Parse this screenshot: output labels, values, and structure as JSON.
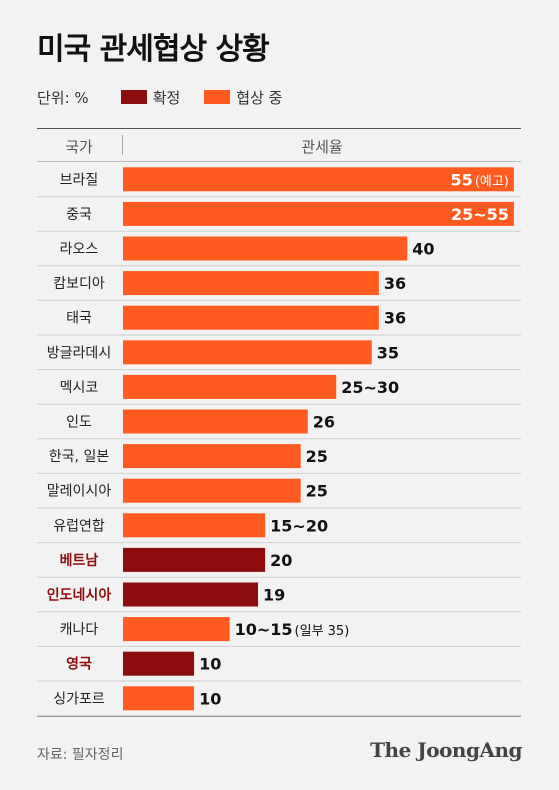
{
  "title": "미국 관세협상 상황",
  "legend": {
    "unit": "단위: %",
    "confirmed": "확정",
    "negotiating": "협상 중"
  },
  "header": {
    "country": "국가",
    "rate": "관세율"
  },
  "source": "자료: 필자정리",
  "brand": "The JoongAng",
  "colors": {
    "negotiating": "#ff5a1f",
    "confirmed": "#8b0d0d",
    "background": "#f2f2f2"
  },
  "chart_data": {
    "type": "bar",
    "orientation": "horizontal",
    "xlim": [
      0,
      56
    ],
    "categories": [
      "브라질",
      "중국",
      "라오스",
      "캄보디아",
      "태국",
      "방글라데시",
      "멕시코",
      "인도",
      "한국, 일본",
      "말레이시아",
      "유럽연합",
      "베트남",
      "인도네시아",
      "캐나다",
      "영국",
      "싱가포르"
    ],
    "values": [
      55,
      55,
      40,
      36,
      36,
      35,
      30,
      26,
      25,
      25,
      20,
      20,
      19,
      15,
      10,
      10
    ],
    "labels": [
      "55",
      "25~55",
      "40",
      "36",
      "36",
      "35",
      "25~30",
      "26",
      "25",
      "25",
      "15~20",
      "20",
      "19",
      "10~15",
      "10",
      "10"
    ],
    "notes": [
      "(예고)",
      "",
      "",
      "",
      "",
      "",
      "",
      "",
      "",
      "",
      "",
      "",
      "",
      "(일부 35)",
      "",
      ""
    ],
    "status": [
      "협상 중",
      "협상 중",
      "협상 중",
      "협상 중",
      "협상 중",
      "협상 중",
      "협상 중",
      "협상 중",
      "협상 중",
      "협상 중",
      "협상 중",
      "확정",
      "확정",
      "협상 중",
      "확정",
      "협상 중"
    ],
    "series": [
      {
        "name": "확정"
      },
      {
        "name": "협상 중"
      }
    ]
  }
}
